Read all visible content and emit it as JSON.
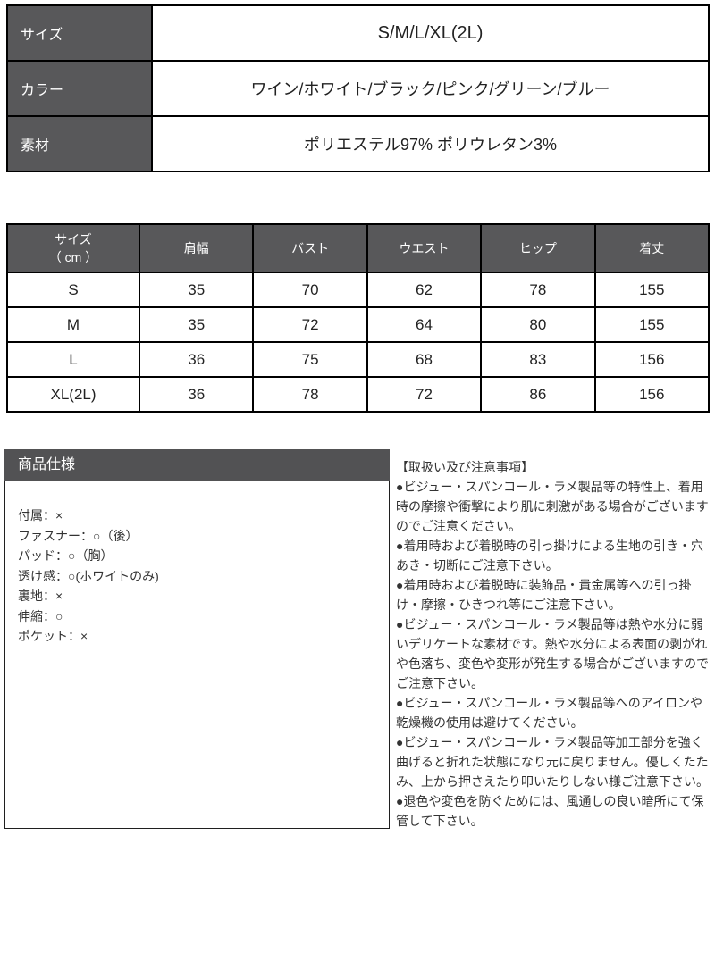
{
  "colors": {
    "header_bg": "#58585a",
    "spec_bar_bg": "#525254",
    "table_border": "#000000",
    "body_text": "#333333"
  },
  "spec_table": {
    "rows": [
      {
        "label": "サイズ",
        "value": "S/M/L/XL(2L)"
      },
      {
        "label": "カラー",
        "value": "ワイン/ホワイト/ブラック/ピンク/グリーン/ブルー"
      },
      {
        "label": "素材",
        "value": "ポリエステル97% ポリウレタン3%"
      }
    ]
  },
  "size_chart": {
    "header": {
      "col0_line1": "サイズ",
      "col0_line2": "（ cm ）",
      "cols": [
        "肩幅",
        "バスト",
        "ウエスト",
        "ヒップ",
        "着丈"
      ]
    },
    "rows": [
      {
        "size": "S",
        "values": [
          "35",
          "70",
          "62",
          "78",
          "155"
        ]
      },
      {
        "size": "M",
        "values": [
          "35",
          "72",
          "64",
          "80",
          "155"
        ]
      },
      {
        "size": "L",
        "values": [
          "36",
          "75",
          "68",
          "83",
          "156"
        ]
      },
      {
        "size": "XL(2L)",
        "values": [
          "36",
          "78",
          "72",
          "86",
          "156"
        ]
      }
    ]
  },
  "product_spec": {
    "title": "商品仕様",
    "items": [
      "付属：×",
      "ファスナー：○（後）",
      "パッド：○（胸）",
      "透け感：○(ホワイトのみ)",
      "裏地：×",
      "伸縮：○",
      "ポケット：×"
    ]
  },
  "notes": {
    "title": "【取扱い及び注意事項】",
    "items": [
      "●ビジュー・スパンコール・ラメ製品等の特性上、着用時の摩擦や衝撃により肌に刺激がある場合がございますのでご注意ください。",
      "●着用時および着脱時の引っ掛けによる生地の引き・穴あき・切断にご注意下さい。",
      "●着用時および着脱時に装飾品・貴金属等への引っ掛け・摩擦・ひきつれ等にご注意下さい。",
      "●ビジュー・スパンコール・ラメ製品等は熱や水分に弱いデリケートな素材です。熱や水分による表面の剥がれや色落ち、変色や変形が発生する場合がございますのでご注意下さい。",
      "●ビジュー・スパンコール・ラメ製品等へのアイロンや乾燥機の使用は避けてください。",
      "●ビジュー・スパンコール・ラメ製品等加工部分を強く曲げると折れた状態になり元に戻りません。優しくたたみ、上から押さえたり叩いたりしない様ご注意下さい。",
      "●退色や変色を防ぐためには、風通しの良い暗所にて保管して下さい。"
    ]
  }
}
